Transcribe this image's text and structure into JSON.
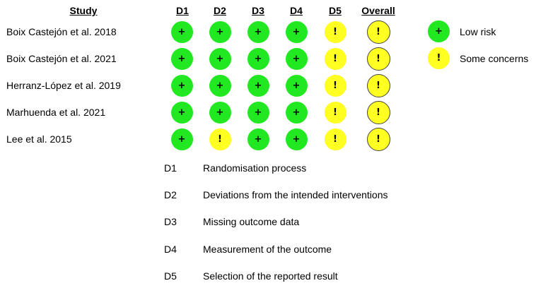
{
  "headers": {
    "study": "Study",
    "d1": "D1",
    "d2": "D2",
    "d3": "D3",
    "d4": "D4",
    "d5": "D5",
    "overall": "Overall"
  },
  "symbols": {
    "low": "+",
    "some": "!"
  },
  "colors": {
    "low": "#22e822",
    "some_concerns": "#ffff22"
  },
  "studies": [
    {
      "name": "Boix Castejón et al. 2018",
      "d1": "low",
      "d2": "low",
      "d3": "low",
      "d4": "low",
      "d5": "some",
      "overall": "some"
    },
    {
      "name": "Boix Castejón et al. 2021",
      "d1": "low",
      "d2": "low",
      "d3": "low",
      "d4": "low",
      "d5": "some",
      "overall": "some"
    },
    {
      "name": "Herranz-López et al. 2019",
      "d1": "low",
      "d2": "low",
      "d3": "low",
      "d4": "low",
      "d5": "some",
      "overall": "some"
    },
    {
      "name": "Marhuenda et al. 2021",
      "d1": "low",
      "d2": "low",
      "d3": "low",
      "d4": "low",
      "d5": "some",
      "overall": "some"
    },
    {
      "name": "Lee et al. 2015",
      "d1": "low",
      "d2": "some",
      "d3": "low",
      "d4": "low",
      "d5": "some",
      "overall": "some"
    }
  ],
  "legend": {
    "low_label": "Low risk",
    "some_label": "Some concerns"
  },
  "domains": [
    {
      "code": "D1",
      "text": "Randomisation process"
    },
    {
      "code": "D2",
      "text": "Deviations from the intended interventions"
    },
    {
      "code": "D3",
      "text": "Missing outcome data"
    },
    {
      "code": "D4",
      "text": "Measurement of the outcome"
    },
    {
      "code": "D5",
      "text": "Selection of the reported result"
    }
  ]
}
